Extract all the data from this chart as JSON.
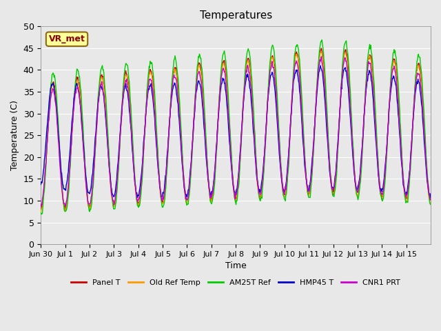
{
  "title": "Temperatures",
  "xlabel": "Time",
  "ylabel": "Temperature (C)",
  "annotation": "VR_met",
  "ylim": [
    0,
    50
  ],
  "background_color": "#e8e8e8",
  "plot_bg_color": "#e8e8e8",
  "series": [
    {
      "name": "Panel T",
      "color": "#cc0000"
    },
    {
      "name": "Old Ref Temp",
      "color": "#ff9900"
    },
    {
      "name": "AM25T Ref",
      "color": "#00cc00"
    },
    {
      "name": "HMP45 T",
      "color": "#0000cc"
    },
    {
      "name": "CNR1 PRT",
      "color": "#cc00cc"
    }
  ],
  "num_days": 16,
  "num_points_per_day": 48,
  "date_labels": [
    "Jun 30",
    "Jul 1",
    "Jul 2",
    "Jul 3",
    "Jul 4",
    "Jul 5",
    "Jul 6",
    "Jul 7",
    "Jul 8",
    "Jul 9",
    "Jul 10",
    "Jul 11",
    "Jul 12",
    "Jul 13",
    "Jul 14",
    "Jul 15"
  ]
}
